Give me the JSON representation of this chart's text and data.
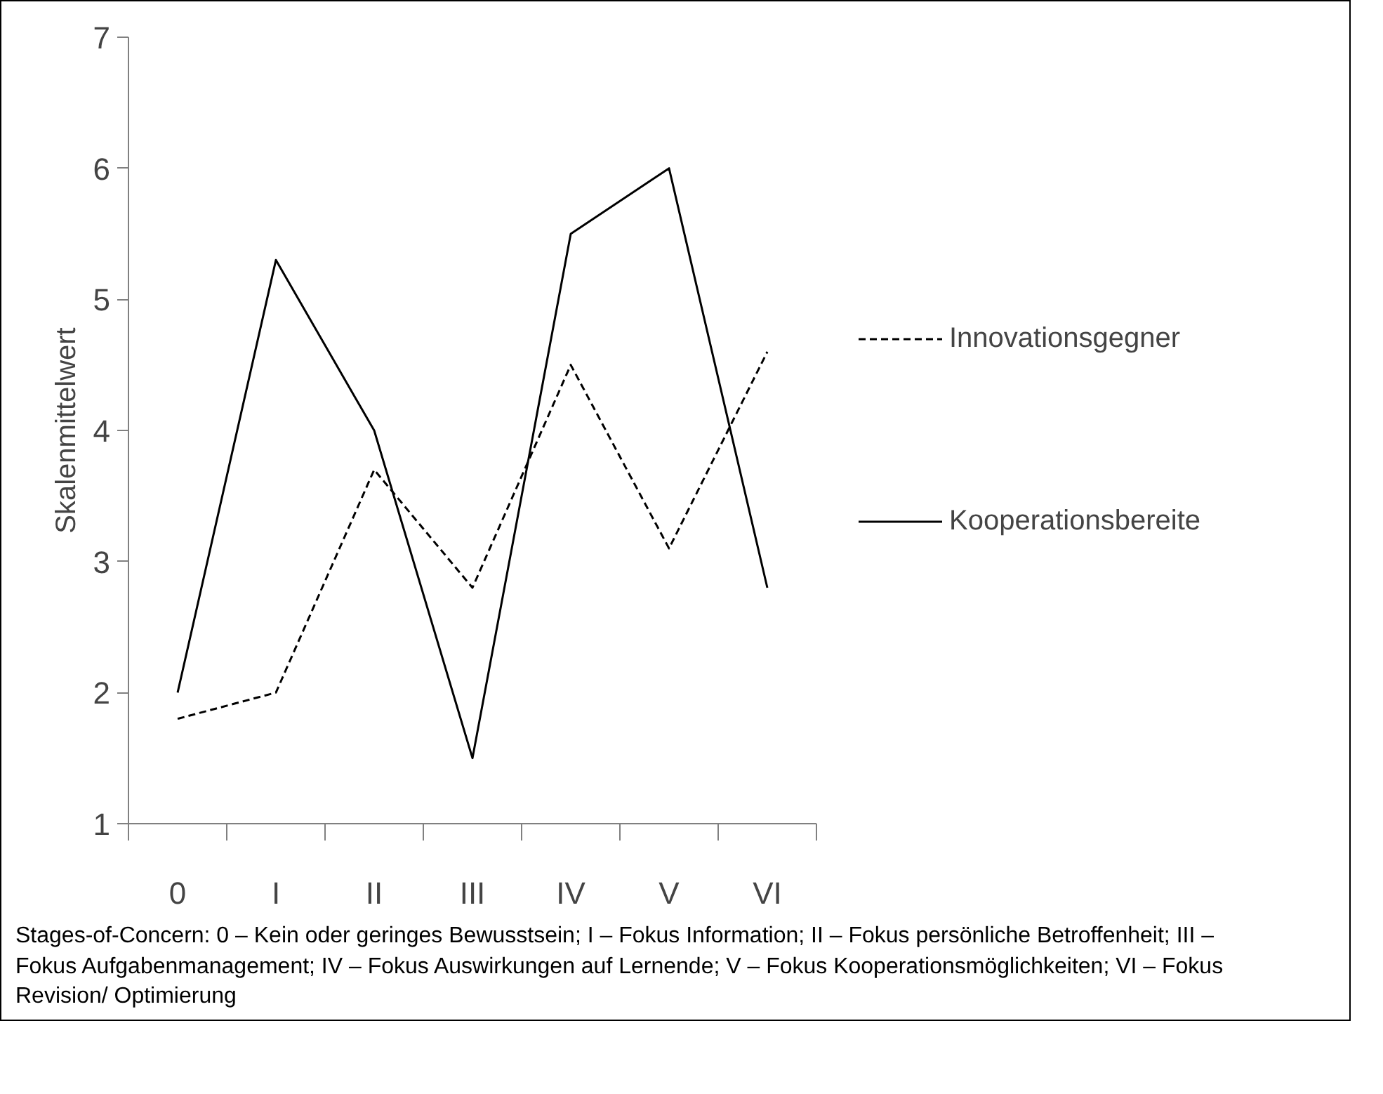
{
  "chart_data": {
    "type": "line",
    "ylabel": "Skalenmittelwert",
    "categories": [
      "0",
      "I",
      "II",
      "III",
      "IV",
      "V",
      "VI"
    ],
    "series": [
      {
        "name": "Innovationsgegner",
        "color": "#000000",
        "line_style": "dashed",
        "values": [
          1.8,
          2.0,
          3.7,
          2.8,
          4.5,
          3.1,
          4.6
        ]
      },
      {
        "name": "Kooperationsbereite",
        "color": "#000000",
        "line_style": "solid",
        "values": [
          2.0,
          5.3,
          4.0,
          1.5,
          5.5,
          6.0,
          2.8
        ]
      }
    ],
    "ylim": [
      1,
      7
    ],
    "yticks": [
      1,
      2,
      3,
      4,
      5,
      6,
      7
    ],
    "grid": false,
    "legend": "right",
    "marker": "none",
    "annotations": [
      "Stages-of-Concern: 0 – Kein oder geringes Bewusstsein; I – Fokus Information; II – Fokus persönliche Betroffenheit; III – Fokus Aufgabenmanagement; IV – Fokus Auswirkungen auf Lernende; V – Fokus Kooperationsmöglichkeiten; VI – Fokus Revision/ Optimierung"
    ]
  }
}
